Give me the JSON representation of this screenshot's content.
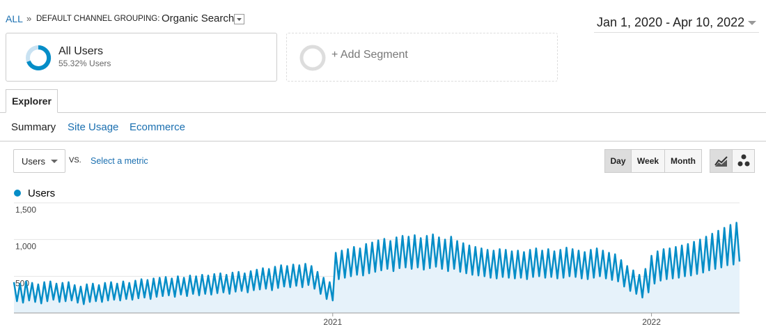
{
  "header": {
    "crumb_all": "ALL",
    "crumb_sep": "»",
    "dimension_label": "DEFAULT CHANNEL GROUPING:",
    "dimension_value": "Organic Search",
    "date_range": "Jan 1, 2020 - Apr 10, 2022"
  },
  "segments": [
    {
      "title": "All Users",
      "subtitle": "55.32% Users"
    },
    {
      "title": "+ Add Segment"
    }
  ],
  "tabs": [
    "Explorer"
  ],
  "subtabs": [
    "Summary",
    "Site Usage",
    "Ecommerce"
  ],
  "controls": {
    "metric": "Users",
    "vs": "VS.",
    "select_metric": "Select a metric",
    "periods": [
      "Day",
      "Week",
      "Month"
    ]
  },
  "chart_data": {
    "type": "line",
    "grid": true,
    "categories": [
      null,
      null,
      null,
      null,
      null,
      null,
      null,
      null,
      null,
      null,
      null,
      null,
      null,
      null,
      null,
      null,
      null,
      null,
      null,
      null,
      null,
      null,
      null,
      null,
      null,
      null,
      null,
      null,
      null,
      null,
      null,
      null,
      null,
      null,
      null,
      null,
      null,
      null,
      null,
      null,
      null,
      null,
      null,
      null,
      null,
      null,
      null,
      null,
      null,
      null,
      null,
      null,
      null,
      null,
      null,
      null,
      null,
      null,
      null,
      null,
      null,
      null,
      null,
      null,
      null,
      null,
      null,
      null,
      null,
      null,
      null,
      null,
      null,
      null,
      null,
      null,
      null,
      null,
      null,
      null,
      null,
      null,
      null,
      null,
      null,
      null,
      null,
      null,
      null,
      null,
      null,
      null,
      null,
      null,
      null,
      null,
      null,
      null,
      null,
      null,
      null,
      null,
      null,
      null,
      null,
      "2021",
      null,
      null,
      null,
      null,
      null,
      null,
      null,
      null,
      null,
      null,
      null,
      null,
      null,
      null,
      null,
      null,
      null,
      null,
      null,
      null,
      null,
      null,
      null,
      null,
      null,
      null,
      null,
      null,
      null,
      null,
      null,
      null,
      null,
      null,
      null,
      null,
      null,
      null,
      null,
      null,
      null,
      null,
      null,
      null,
      null,
      null,
      null,
      null,
      null,
      null,
      null,
      null,
      null,
      null,
      null,
      null,
      null,
      null,
      null,
      null,
      null,
      null,
      null,
      null,
      null,
      null,
      null,
      null,
      null,
      null,
      null,
      null,
      null,
      null,
      null,
      null,
      null,
      null,
      null,
      null,
      null,
      null,
      null,
      null,
      null,
      null,
      null,
      null,
      null,
      null,
      null,
      null,
      null,
      null,
      null,
      null,
      null,
      null,
      null,
      null,
      null,
      null,
      null,
      null,
      "2022",
      null,
      null,
      null,
      null,
      null,
      null,
      null,
      null,
      null,
      null,
      null,
      null,
      null,
      null,
      null,
      null,
      null,
      null,
      null,
      null,
      null,
      null,
      null,
      null,
      null,
      null,
      null,
      null,
      null
    ],
    "series": [
      {
        "name": "Users",
        "color": "#058dc7",
        "values": [
          420,
          160,
          400,
          140,
          430,
          170,
          410,
          150,
          390,
          130,
          420,
          160,
          430,
          180,
          400,
          150,
          410,
          160,
          420,
          170,
          380,
          140,
          360,
          120,
          390,
          150,
          400,
          160,
          380,
          150,
          410,
          170,
          420,
          180,
          400,
          170,
          430,
          190,
          410,
          180,
          440,
          200,
          460,
          210,
          450,
          190,
          470,
          220,
          480,
          230,
          490,
          240,
          470,
          220,
          500,
          250,
          480,
          230,
          510,
          260,
          500,
          240,
          520,
          260,
          510,
          250,
          530,
          270,
          540,
          280,
          520,
          260,
          550,
          290,
          560,
          300,
          540,
          280,
          570,
          310,
          590,
          320,
          610,
          330,
          600,
          310,
          630,
          340,
          650,
          360,
          640,
          350,
          660,
          370,
          650,
          350,
          670,
          380,
          640,
          330,
          560,
          260,
          480,
          190,
          420,
          170,
          820,
          460,
          850,
          480,
          870,
          500,
          900,
          520,
          880,
          510,
          940,
          540,
          960,
          560,
          990,
          580,
          1010,
          600,
          980,
          570,
          1030,
          610,
          1050,
          620,
          1040,
          600,
          1060,
          620,
          1020,
          590,
          1050,
          610,
          1070,
          630,
          1030,
          600,
          1000,
          570,
          1040,
          600,
          980,
          560,
          950,
          540,
          920,
          520,
          900,
          510,
          880,
          500,
          860,
          480,
          850,
          470,
          870,
          490,
          860,
          480,
          840,
          470,
          850,
          480,
          830,
          460,
          860,
          490,
          880,
          500,
          850,
          480,
          870,
          490,
          840,
          470,
          860,
          480,
          890,
          500,
          870,
          490,
          850,
          470,
          830,
          460,
          860,
          480,
          880,
          500,
          850,
          470,
          820,
          450,
          800,
          430,
          720,
          360,
          640,
          300,
          580,
          260,
          520,
          210,
          600,
          280,
          780,
          400,
          840,
          440,
          870,
          460,
          880,
          470,
          900,
          480,
          920,
          500,
          940,
          510,
          970,
          530,
          1000,
          550,
          1040,
          580,
          1080,
          600,
          1120,
          620,
          1160,
          650,
          1200,
          660,
          1230,
          700
        ]
      }
    ],
    "ylim": [
      0,
      1500
    ],
    "yticks": [
      500,
      {
        "value": 1000,
        "label": "1,000"
      },
      {
        "value": 1500,
        "label": "1,500"
      }
    ]
  }
}
